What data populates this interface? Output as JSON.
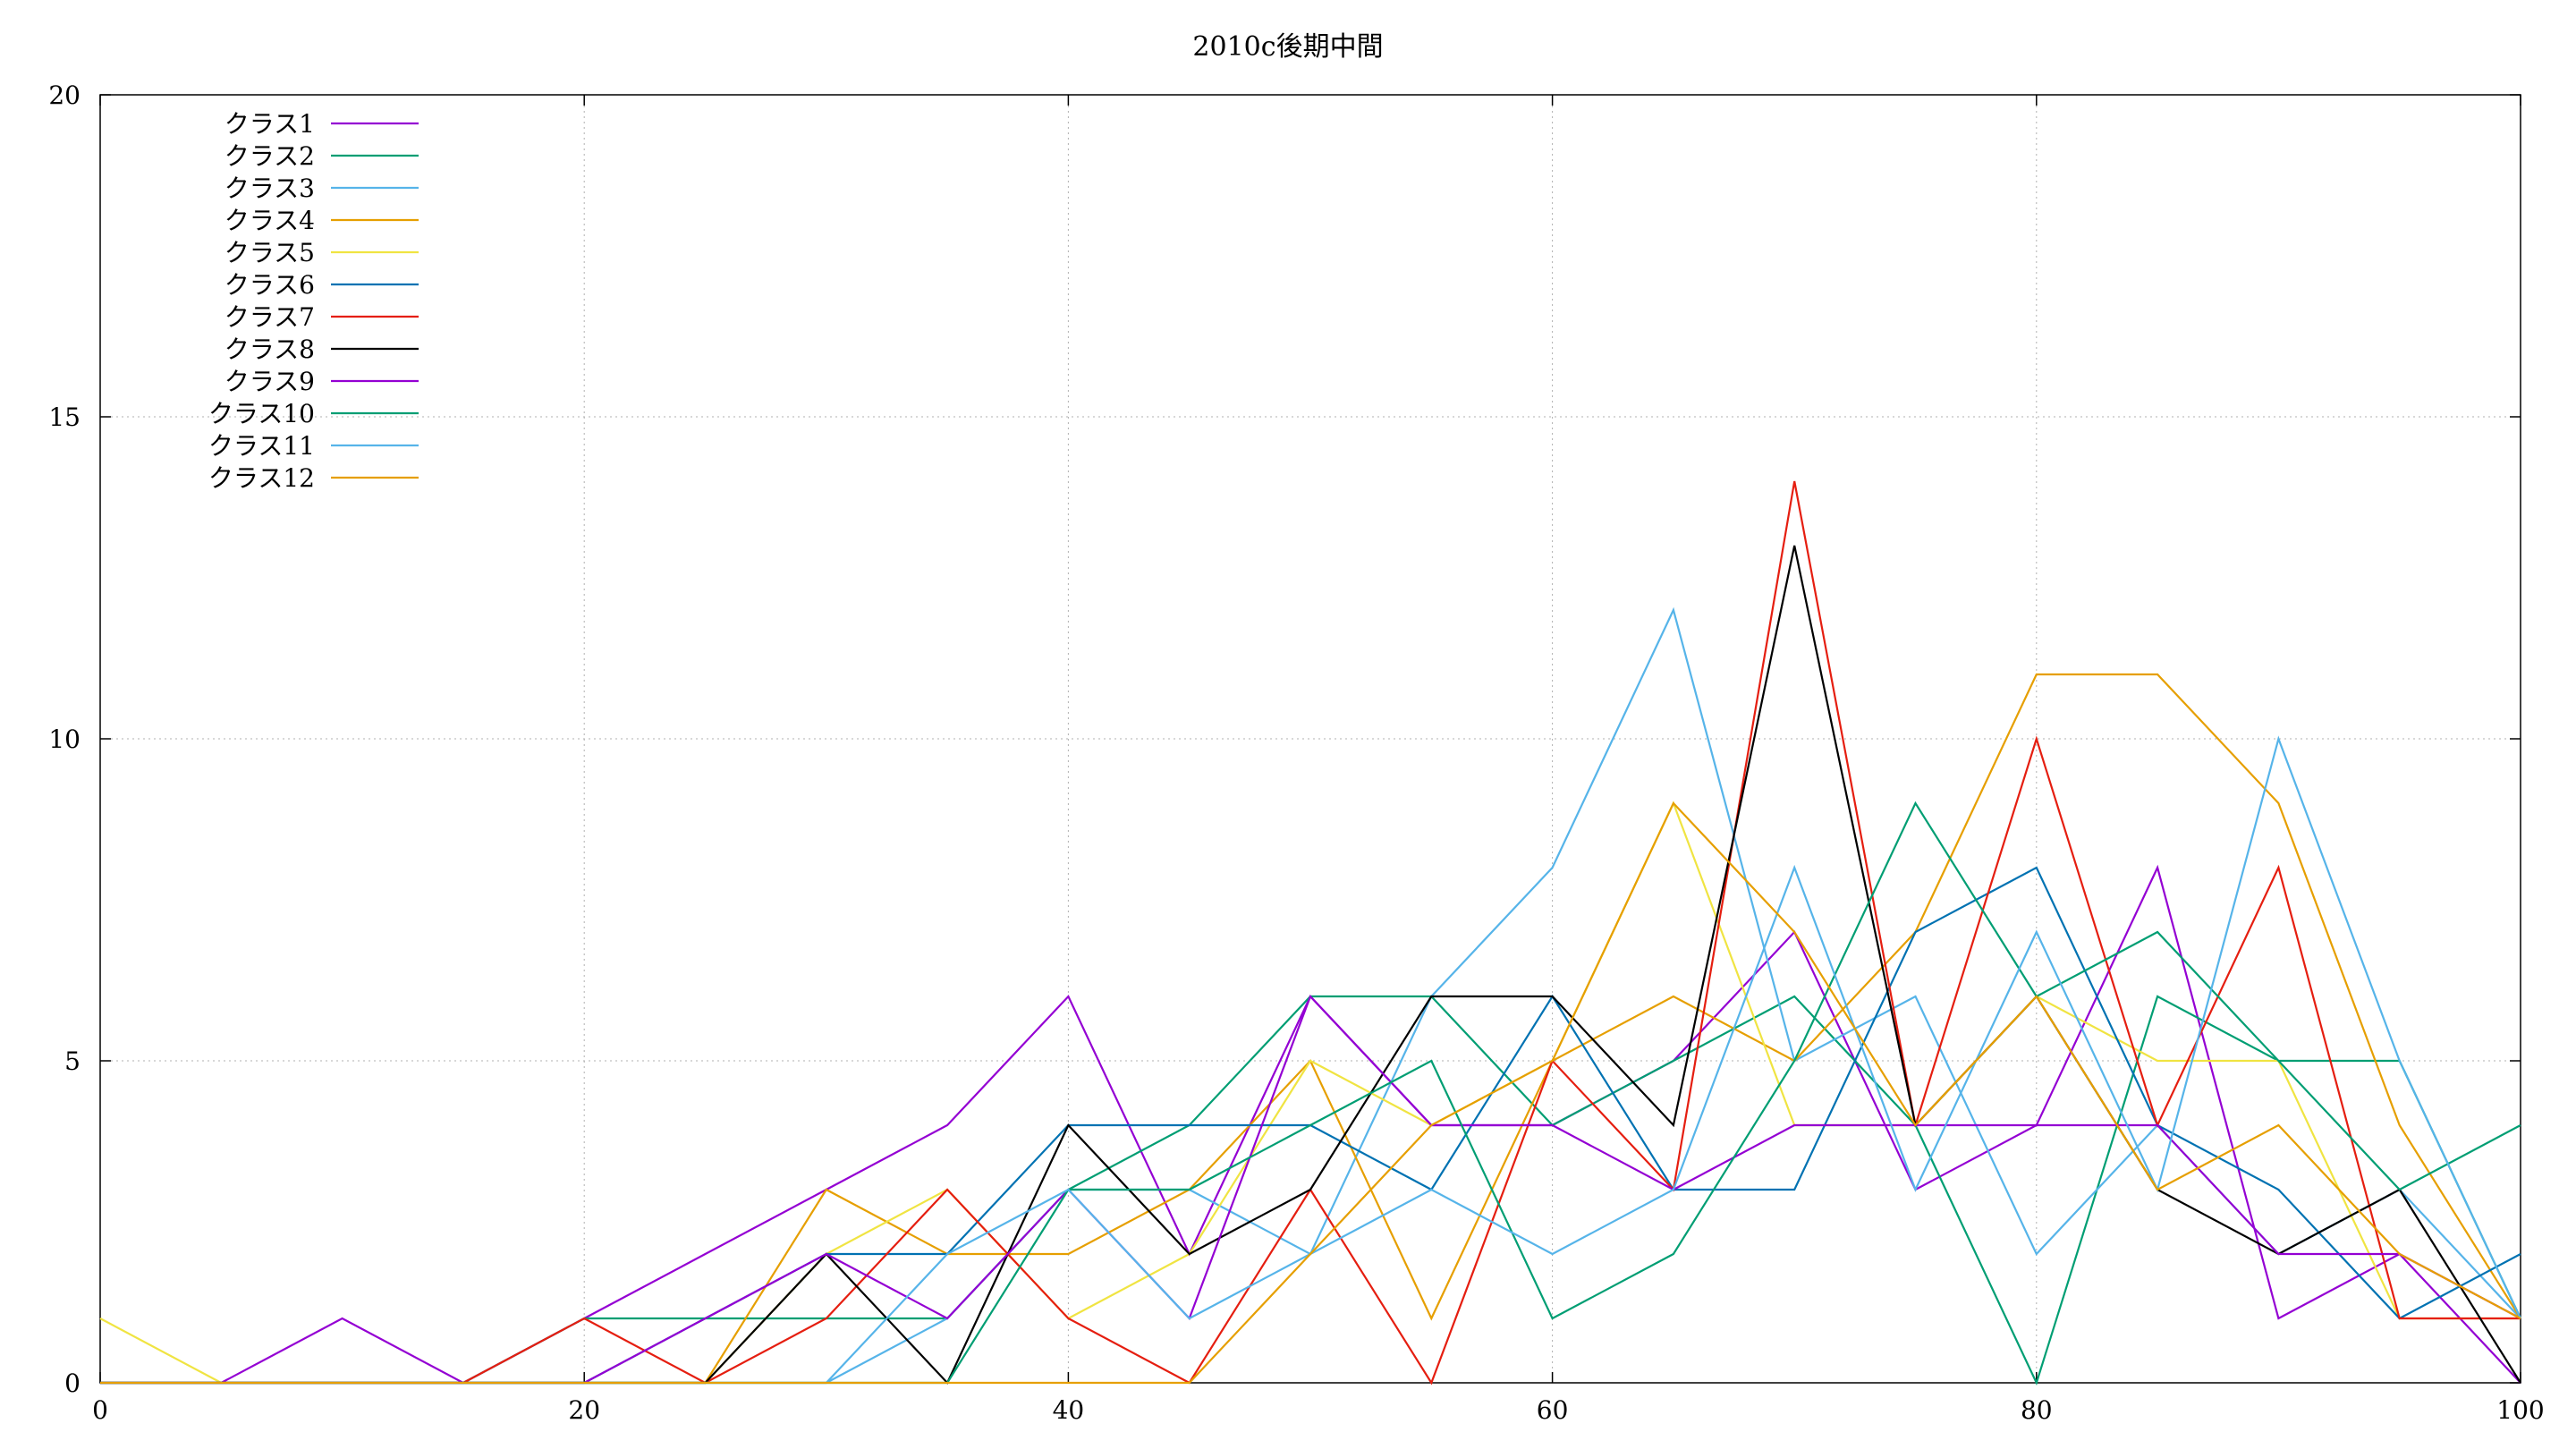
{
  "chart_data": {
    "type": "line",
    "title": "2010c後期中間",
    "xlabel": "",
    "ylabel": "",
    "xlim": [
      0,
      100
    ],
    "ylim": [
      0,
      20
    ],
    "x_ticks": [
      "0",
      "20",
      "40",
      "60",
      "80",
      "100"
    ],
    "y_ticks": [
      "0",
      "5",
      "10",
      "15",
      "20"
    ],
    "grid": true,
    "legend_position": "top-left",
    "x": [
      0,
      5,
      10,
      15,
      20,
      25,
      30,
      35,
      40,
      45,
      50,
      55,
      60,
      65,
      70,
      75,
      80,
      85,
      90,
      95,
      100
    ],
    "series": [
      {
        "name": "クラス1",
        "color": "#9400d3",
        "values": [
          0,
          0,
          1,
          0,
          1,
          2,
          3,
          4,
          6,
          2,
          6,
          4,
          4,
          5,
          7,
          3,
          4,
          8,
          1,
          2,
          0
        ]
      },
      {
        "name": "クラス2",
        "color": "#009e73",
        "values": [
          0,
          0,
          0,
          0,
          1,
          1,
          1,
          1,
          3,
          4,
          6,
          6,
          4,
          5,
          6,
          4,
          0,
          6,
          5,
          5,
          1
        ]
      },
      {
        "name": "クラス3",
        "color": "#56b4e9",
        "values": [
          0,
          0,
          0,
          0,
          0,
          0,
          0,
          1,
          3,
          3,
          2,
          6,
          8,
          12,
          5,
          6,
          2,
          4,
          2,
          3,
          1
        ]
      },
      {
        "name": "クラス4",
        "color": "#e69f00",
        "values": [
          0,
          0,
          0,
          0,
          0,
          0,
          3,
          2,
          2,
          3,
          5,
          1,
          5,
          6,
          5,
          7,
          11,
          11,
          9,
          4,
          1
        ]
      },
      {
        "name": "クラス5",
        "color": "#f0e442",
        "values": [
          1,
          0,
          0,
          0,
          0,
          0,
          2,
          3,
          1,
          2,
          5,
          4,
          5,
          9,
          4,
          4,
          6,
          5,
          5,
          1,
          1
        ]
      },
      {
        "name": "クラス6",
        "color": "#0072b2",
        "values": [
          0,
          0,
          0,
          0,
          0,
          1,
          2,
          2,
          4,
          4,
          4,
          3,
          6,
          3,
          3,
          7,
          8,
          4,
          3,
          1,
          2
        ]
      },
      {
        "name": "クラス7",
        "color": "#e51e10",
        "values": [
          0,
          0,
          0,
          0,
          1,
          0,
          1,
          3,
          1,
          0,
          3,
          0,
          5,
          3,
          14,
          4,
          10,
          4,
          8,
          1,
          1
        ]
      },
      {
        "name": "クラス8",
        "color": "#000000",
        "values": [
          0,
          0,
          0,
          0,
          0,
          0,
          2,
          0,
          4,
          2,
          3,
          6,
          6,
          4,
          13,
          4,
          6,
          3,
          2,
          3,
          0
        ]
      },
      {
        "name": "クラス9",
        "color": "#9400d3",
        "values": [
          0,
          0,
          0,
          0,
          0,
          1,
          2,
          1,
          3,
          1,
          6,
          4,
          4,
          3,
          4,
          4,
          4,
          4,
          2,
          2,
          1
        ]
      },
      {
        "name": "クラス10",
        "color": "#009e73",
        "values": [
          0,
          0,
          0,
          0,
          0,
          0,
          0,
          0,
          3,
          3,
          4,
          5,
          1,
          2,
          5,
          9,
          6,
          7,
          5,
          3,
          4
        ]
      },
      {
        "name": "クラス11",
        "color": "#56b4e9",
        "values": [
          0,
          0,
          0,
          0,
          0,
          0,
          0,
          2,
          3,
          1,
          2,
          3,
          2,
          3,
          8,
          3,
          7,
          3,
          10,
          5,
          1
        ]
      },
      {
        "name": "クラス12",
        "color": "#e69f00",
        "values": [
          0,
          0,
          0,
          0,
          0,
          0,
          0,
          0,
          0,
          0,
          2,
          4,
          5,
          9,
          7,
          4,
          6,
          3,
          4,
          2,
          1
        ]
      }
    ]
  }
}
